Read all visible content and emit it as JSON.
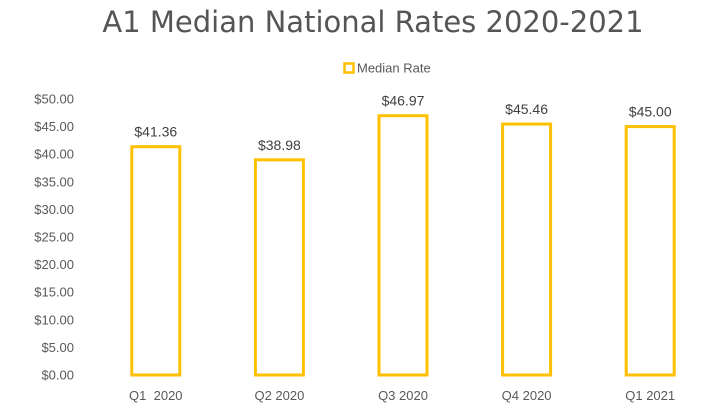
{
  "chart_data": {
    "type": "bar",
    "title": "A1 Median National Rates 2020-2021",
    "categories": [
      "Q1  2020",
      "Q2 2020",
      "Q3 2020",
      "Q4 2020",
      "Q1 2021"
    ],
    "series": [
      {
        "name": "Median Rate",
        "values": [
          41.36,
          38.98,
          46.97,
          45.46,
          45.0
        ],
        "labels": [
          "$41.36",
          "$38.98",
          "$46.97",
          "$45.46",
          "$45.00"
        ]
      }
    ],
    "yticks": [
      "$0.00",
      "$5.00",
      "$10.00",
      "$15.00",
      "$20.00",
      "$25.00",
      "$30.00",
      "$35.00",
      "$40.00",
      "$45.00",
      "$50.00"
    ],
    "ylim": [
      0,
      50
    ],
    "legend_position": "top-center",
    "grid": false,
    "bar_style": "outline",
    "colors": {
      "bar_outline": "#FFC000",
      "bar_fill": "#FFFFFF"
    }
  }
}
